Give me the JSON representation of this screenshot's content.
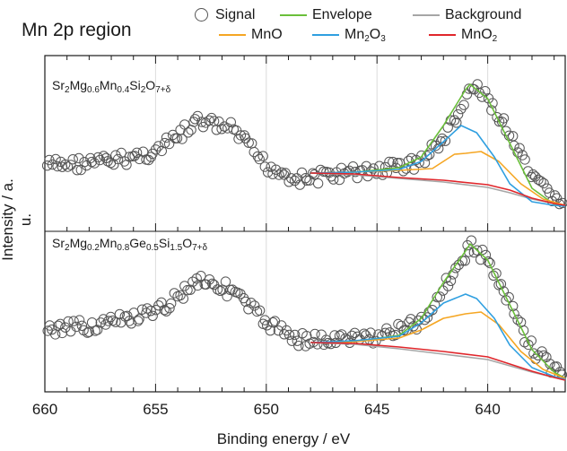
{
  "chart_data": {
    "type": "scatter",
    "title": "Mn 2p region",
    "xlabel": "Binding energy / eV",
    "ylabel": "Intensity / a. u.",
    "x_ticks": [
      660,
      655,
      650,
      645,
      640
    ],
    "xlim": [
      660,
      636.5
    ],
    "x_reversed": true,
    "grid": "vertical",
    "legend": {
      "placement": "top",
      "entries": [
        {
          "name": "Signal",
          "color": "#555555",
          "marker": "circle"
        },
        {
          "name": "Envelope",
          "color": "#6abf3a"
        },
        {
          "name": "Background",
          "color": "#a6a6a6"
        },
        {
          "name": "MnO",
          "color": "#f5a623"
        },
        {
          "name": "Mn2O3",
          "color": "#2f9fe0"
        },
        {
          "name": "MnO2",
          "color": "#e0262b"
        }
      ]
    },
    "panels": [
      {
        "label": "Sr2Mg0.6Mn0.4Si2O7+δ",
        "signal_profile": [
          [
            660,
            185
          ],
          [
            657,
            180
          ],
          [
            655,
            170
          ],
          [
            653,
            135
          ],
          [
            651.5,
            145
          ],
          [
            650,
            185
          ],
          [
            648.5,
            200
          ],
          [
            647,
            195
          ],
          [
            645,
            190
          ],
          [
            643,
            180
          ],
          [
            642,
            155
          ],
          [
            641,
            115
          ],
          [
            640.8,
            96
          ],
          [
            640,
            110
          ],
          [
            639,
            150
          ],
          [
            638,
            200
          ],
          [
            637,
            220
          ],
          [
            636.5,
            226
          ]
        ],
        "series": [
          {
            "name": "Envelope",
            "color": "#6abf3a",
            "points": [
              [
                648,
                193
              ],
              [
                646,
                192
              ],
              [
                644,
                187
              ],
              [
                643,
                175
              ],
              [
                642,
                140
              ],
              [
                641,
                100
              ],
              [
                640.8,
                94
              ],
              [
                640,
                110
              ],
              [
                639,
                160
              ],
              [
                638,
                210
              ],
              [
                637,
                228
              ],
              [
                636.5,
                230
              ]
            ]
          },
          {
            "name": "Background",
            "color": "#a6a6a6",
            "points": [
              [
                648,
                193
              ],
              [
                646,
                195
              ],
              [
                644,
                199
              ],
              [
                642,
                203
              ],
              [
                640,
                209
              ],
              [
                639,
                215
              ],
              [
                638,
                222
              ],
              [
                637,
                227
              ],
              [
                636.5,
                229
              ]
            ]
          },
          {
            "name": "MnO",
            "color": "#f5a623",
            "points": [
              [
                648,
                193
              ],
              [
                646,
                192
              ],
              [
                644,
                190
              ],
              [
                642.5,
                188
              ],
              [
                641.5,
                172
              ],
              [
                641,
                171
              ],
              [
                640.3,
                169
              ],
              [
                639.5,
                180
              ],
              [
                638.5,
                205
              ],
              [
                637.5,
                222
              ],
              [
                636.5,
                229
              ]
            ]
          },
          {
            "name": "Mn2O3",
            "color": "#2f9fe0",
            "points": [
              [
                648,
                193
              ],
              [
                646,
                192
              ],
              [
                644,
                189
              ],
              [
                643,
                180
              ],
              [
                642,
                158
              ],
              [
                641.2,
                140
              ],
              [
                640.5,
                148
              ],
              [
                639.7,
                175
              ],
              [
                639,
                205
              ],
              [
                638,
                225
              ],
              [
                637,
                229
              ],
              [
                636.5,
                230
              ]
            ]
          },
          {
            "name": "MnO2",
            "color": "#e0262b",
            "points": [
              [
                648,
                193
              ],
              [
                646,
                194
              ],
              [
                644,
                198
              ],
              [
                642,
                201
              ],
              [
                640,
                206
              ],
              [
                639,
                212
              ],
              [
                638,
                221
              ],
              [
                637,
                227
              ],
              [
                636.5,
                229
              ]
            ]
          }
        ]
      },
      {
        "label": "Sr2Mg0.2Mn0.8Ge0.5Si1.5O7+δ",
        "signal_profile": [
          [
            660,
            370
          ],
          [
            657,
            360
          ],
          [
            655,
            350
          ],
          [
            653,
            310
          ],
          [
            651.5,
            325
          ],
          [
            650,
            360
          ],
          [
            648.5,
            378
          ],
          [
            647,
            380
          ],
          [
            645,
            375
          ],
          [
            643,
            360
          ],
          [
            642,
            320
          ],
          [
            641,
            285
          ],
          [
            640.8,
            272
          ],
          [
            640,
            290
          ],
          [
            639,
            340
          ],
          [
            638,
            390
          ],
          [
            637,
            410
          ],
          [
            636.5,
            420
          ]
        ],
        "series": [
          {
            "name": "Envelope",
            "color": "#6abf3a",
            "points": [
              [
                648,
                382
              ],
              [
                646,
                381
              ],
              [
                644,
                374
              ],
              [
                643,
                355
              ],
              [
                642,
                315
              ],
              [
                641,
                280
              ],
              [
                640.8,
                272
              ],
              [
                640,
                290
              ],
              [
                639,
                340
              ],
              [
                638,
                390
              ],
              [
                637,
                415
              ],
              [
                636.5,
                422
              ]
            ]
          },
          {
            "name": "Background",
            "color": "#a6a6a6",
            "points": [
              [
                648,
                382
              ],
              [
                646,
                384
              ],
              [
                644,
                389
              ],
              [
                642,
                395
              ],
              [
                640,
                401
              ],
              [
                639,
                408
              ],
              [
                638,
                415
              ],
              [
                637,
                421
              ],
              [
                636.5,
                424
              ]
            ]
          },
          {
            "name": "MnO",
            "color": "#f5a623",
            "points": [
              [
                648,
                382
              ],
              [
                646,
                381
              ],
              [
                644,
                377
              ],
              [
                643,
                368
              ],
              [
                642,
                355
              ],
              [
                641,
                350
              ],
              [
                640.3,
                348
              ],
              [
                639.5,
                362
              ],
              [
                638.5,
                392
              ],
              [
                637.5,
                412
              ],
              [
                636.5,
                422
              ]
            ]
          },
          {
            "name": "Mn2O3",
            "color": "#2f9fe0",
            "points": [
              [
                648,
                382
              ],
              [
                646,
                380
              ],
              [
                644,
                375
              ],
              [
                643,
                360
              ],
              [
                642,
                338
              ],
              [
                641,
                328
              ],
              [
                640.5,
                333
              ],
              [
                639.7,
                355
              ],
              [
                639,
                385
              ],
              [
                638,
                410
              ],
              [
                637,
                420
              ],
              [
                636.5,
                423
              ]
            ]
          },
          {
            "name": "MnO2",
            "color": "#e0262b",
            "points": [
              [
                648,
                382
              ],
              [
                646,
                383
              ],
              [
                644,
                387
              ],
              [
                642,
                392
              ],
              [
                640,
                398
              ],
              [
                639,
                406
              ],
              [
                638,
                414
              ],
              [
                637,
                421
              ],
              [
                636.5,
                424
              ]
            ]
          }
        ]
      }
    ]
  }
}
